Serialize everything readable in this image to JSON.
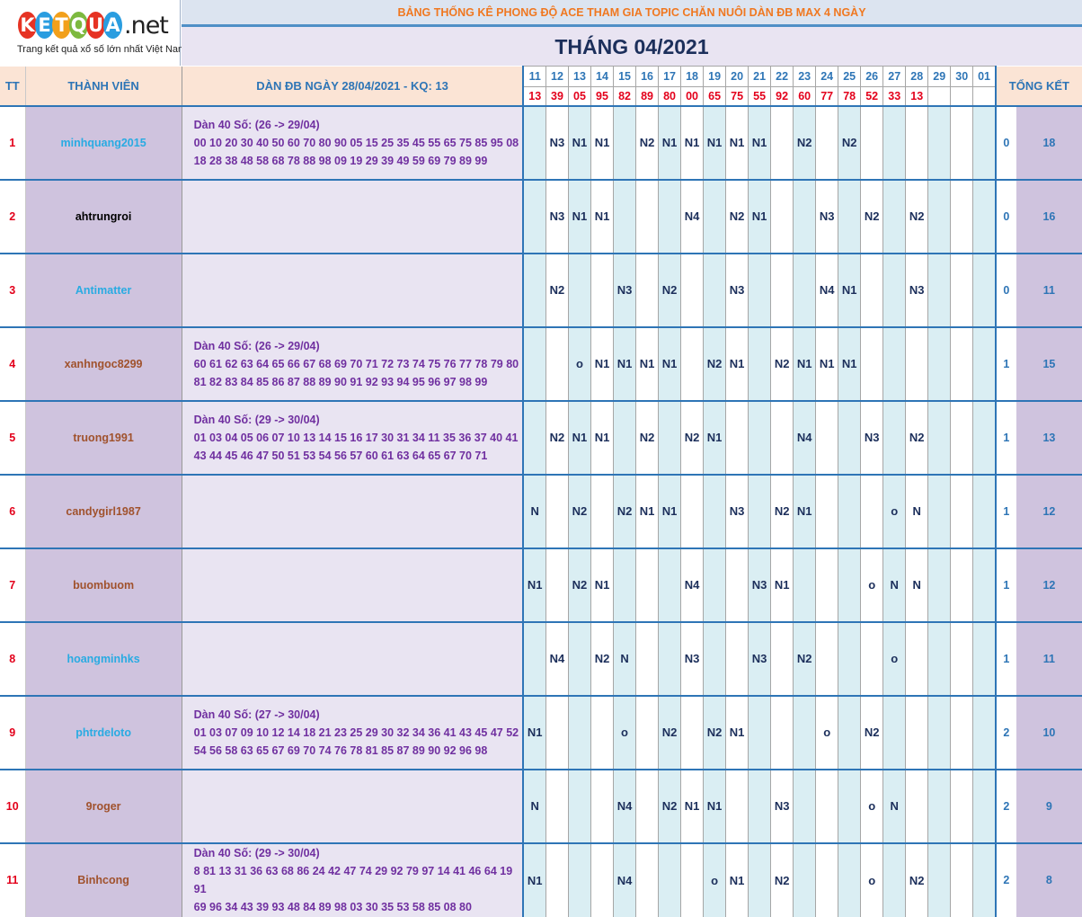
{
  "logo": {
    "letters": [
      "K",
      "E",
      "T",
      "Q",
      "U",
      "A"
    ],
    "suffix": ".net",
    "tagline": "Trang kết quả xổ số lớn nhất Việt Nam",
    "colors": [
      "#e63323",
      "#2a9de0",
      "#f2a01b",
      "#7db93f",
      "#e63323",
      "#2a9de0"
    ]
  },
  "banner": "BẢNG THỐNG KÊ PHONG ĐỘ ACE THAM GIA TOPIC CHĂN NUÔI DÀN ĐB MAX 4 NGÀY",
  "month": "THÁNG 04/2021",
  "header": {
    "tt": "TT",
    "member": "THÀNH VIÊN",
    "dan": "DÀN ĐB NGÀY 28/04/2021 - KQ: 13",
    "summary": "TỔNG KẾT"
  },
  "days": [
    "11",
    "12",
    "13",
    "14",
    "15",
    "16",
    "17",
    "18",
    "19",
    "20",
    "21",
    "22",
    "23",
    "24",
    "25",
    "26",
    "27",
    "28",
    "29",
    "30",
    "01"
  ],
  "results": [
    "13",
    "39",
    "05",
    "95",
    "82",
    "89",
    "80",
    "00",
    "65",
    "75",
    "55",
    "92",
    "60",
    "77",
    "78",
    "52",
    "33",
    "13",
    "",
    "",
    ""
  ],
  "rows": [
    {
      "tt": "1",
      "name": "minhquang2015",
      "color": "#29abe2",
      "dan": [
        "Dàn 40 Số: (26 -> 29/04)",
        "00 10 20 30 40 50 60 70 80 90 05 15 25 35 45 55 65 75 85 95 08",
        "18 28 38 48 58 68 78 88 98 09 19 29 39 49 59 69 79 89 99"
      ],
      "cells": [
        "",
        "N3",
        "N1",
        "N1",
        "",
        "N2",
        "N1",
        "N1",
        "N1",
        "N1",
        "N1",
        "",
        "N2",
        "",
        "N2",
        "",
        "",
        "",
        "",
        "",
        ""
      ],
      "s1": "0",
      "s2": "18"
    },
    {
      "tt": "2",
      "name": "ahtrungroi",
      "color": "#000000",
      "dan": [],
      "cells": [
        "",
        "N3",
        "N1",
        "N1",
        "",
        "",
        "",
        "N4",
        "",
        "N2",
        "N1",
        "",
        "",
        "N3",
        "",
        "N2",
        "",
        "N2",
        "",
        "",
        ""
      ],
      "s1": "0",
      "s2": "16"
    },
    {
      "tt": "3",
      "name": "Antimatter",
      "color": "#29abe2",
      "dan": [],
      "cells": [
        "",
        "N2",
        "",
        "",
        "N3",
        "",
        "N2",
        "",
        "",
        "N3",
        "",
        "",
        "",
        "N4",
        "N1",
        "",
        "",
        "N3",
        "",
        "",
        ""
      ],
      "s1": "0",
      "s2": "11"
    },
    {
      "tt": "4",
      "name": "xanhngoc8299",
      "color": "#a0522d",
      "dan": [
        "Dàn 40 Số: (26 -> 29/04)",
        "60 61 62 63 64 65 66 67 68 69 70 71 72 73 74 75 76 77 78 79 80",
        "81 82 83 84 85 86 87 88 89 90 91 92 93 94 95 96 97 98 99"
      ],
      "cells": [
        "",
        "",
        "o",
        "N1",
        "N1",
        "N1",
        "N1",
        "",
        "N2",
        "N1",
        "",
        "N2",
        "N1",
        "N1",
        "N1",
        "",
        "",
        "",
        "",
        "",
        ""
      ],
      "s1": "1",
      "s2": "15"
    },
    {
      "tt": "5",
      "name": "truong1991",
      "color": "#a0522d",
      "dan": [
        "Dàn 40 Số: (29 -> 30/04)",
        "01 03 04 05 06 07 10 13 14 15 16 17 30 31 34 11 35 36 37 40 41",
        "43 44 45 46 47 50 51 53 54 56 57 60 61 63 64 65 67 70 71"
      ],
      "cells": [
        "",
        "N2",
        "N1",
        "N1",
        "",
        "N2",
        "",
        "N2",
        "N1",
        "",
        "",
        "",
        "N4",
        "",
        "",
        "N3",
        "",
        "N2",
        "",
        "",
        ""
      ],
      "s1": "1",
      "s2": "13"
    },
    {
      "tt": "6",
      "name": "candygirl1987",
      "color": "#a0522d",
      "dan": [],
      "cells": [
        "N",
        "",
        "N2",
        "",
        "N2",
        "N1",
        "N1",
        "",
        "",
        "N3",
        "",
        "N2",
        "N1",
        "",
        "",
        "",
        "o",
        "N",
        "",
        "",
        ""
      ],
      "s1": "1",
      "s2": "12"
    },
    {
      "tt": "7",
      "name": "buombuom",
      "color": "#a0522d",
      "dan": [],
      "cells": [
        "N1",
        "",
        "N2",
        "N1",
        "",
        "",
        "",
        "N4",
        "",
        "",
        "N3",
        "N1",
        "",
        "",
        "",
        "o",
        "N",
        "N",
        "",
        "",
        ""
      ],
      "s1": "1",
      "s2": "12"
    },
    {
      "tt": "8",
      "name": "hoangminhks",
      "color": "#29abe2",
      "dan": [],
      "cells": [
        "",
        "N4",
        "",
        "N2",
        "N",
        "",
        "",
        "N3",
        "",
        "",
        "N3",
        "",
        "N2",
        "",
        "",
        "",
        "o",
        "",
        "",
        "",
        ""
      ],
      "s1": "1",
      "s2": "11"
    },
    {
      "tt": "9",
      "name": "phtrdeloto",
      "color": "#29abe2",
      "dan": [
        "Dàn 40 Số: (27 -> 30/04)",
        "01 03 07 09 10 12 14 18 21 23 25 29 30 32 34 36 41 43 45 47 52",
        "54 56 58 63 65 67 69 70 74 76 78 81 85 87 89 90 92 96 98"
      ],
      "cells": [
        "N1",
        "",
        "",
        "",
        "o",
        "",
        "N2",
        "",
        "N2",
        "N1",
        "",
        "",
        "",
        "o",
        "",
        "N2",
        "",
        "",
        "",
        "",
        ""
      ],
      "s1": "2",
      "s2": "10"
    },
    {
      "tt": "10",
      "name": "9roger",
      "color": "#a0522d",
      "dan": [],
      "cells": [
        "N",
        "",
        "",
        "",
        "N4",
        "",
        "N2",
        "N1",
        "N1",
        "",
        "",
        "N3",
        "",
        "",
        "",
        "o",
        "N",
        "",
        "",
        "",
        ""
      ],
      "s1": "2",
      "s2": "9"
    },
    {
      "tt": "11",
      "name": "Binhcong",
      "color": "#a0522d",
      "dan": [
        "Dàn 40 Số: (29 -> 30/04)",
        "8 81 13 31 36 63 68 86 24 42 47 74 29 92 79 97 14 41 46 64 19 91",
        "69 96 34 43 39 93 48 84 89 98 03 30 35 53 58 85 08 80"
      ],
      "cells": [
        "N1",
        "",
        "",
        "",
        "N4",
        "",
        "",
        "",
        "o",
        "N1",
        "",
        "N2",
        "",
        "",
        "",
        "o",
        "",
        "N2",
        "",
        "",
        ""
      ],
      "s1": "2",
      "s2": "8"
    }
  ]
}
